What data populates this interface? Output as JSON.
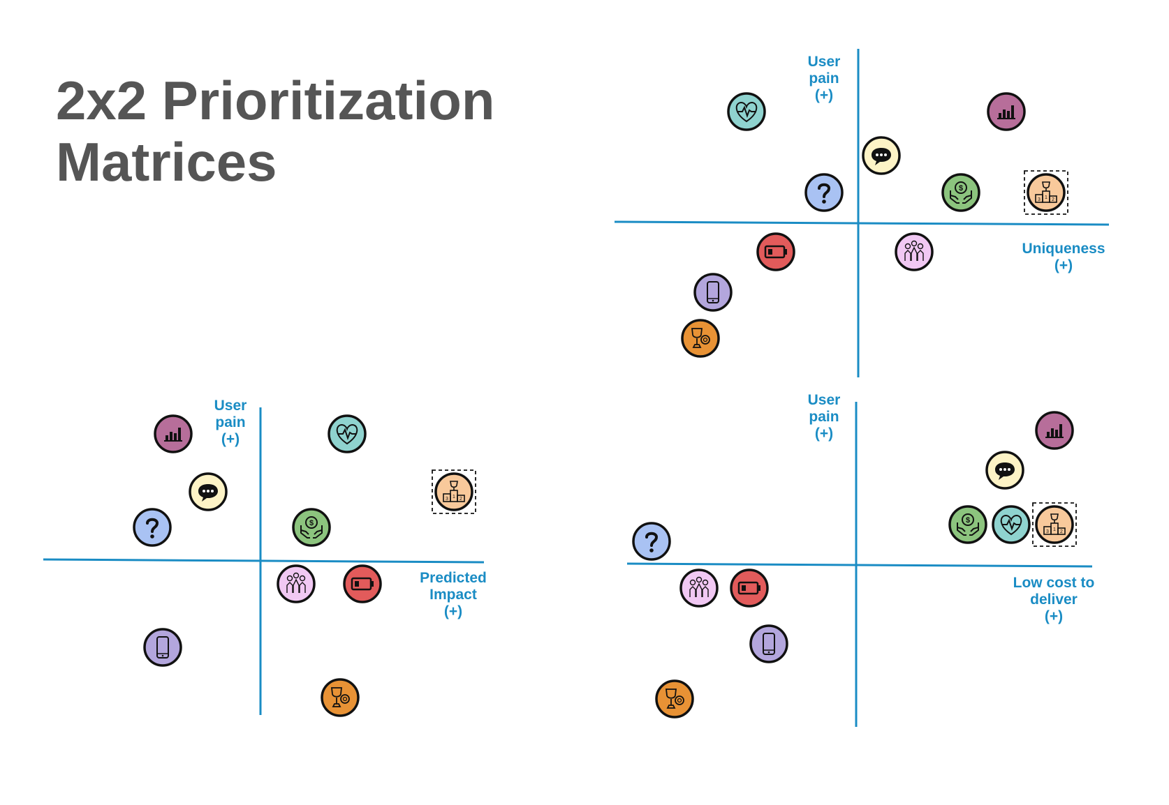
{
  "title": {
    "line1": "2x2 Prioritization",
    "line2": "Matrices"
  },
  "colors": {
    "axis": "#1a8cc4",
    "label": "#1a8cc4",
    "title": "#555555",
    "outline": "#111111"
  },
  "icon_types": {
    "heart": {
      "icon": "heart-pulse-icon",
      "fill": "#8fd3cf"
    },
    "bar": {
      "icon": "bar-chart-icon",
      "fill": "#b76e9a"
    },
    "chat": {
      "icon": "speech-bubble-icon",
      "fill": "#fdf3c6"
    },
    "question": {
      "icon": "question-mark-icon",
      "fill": "#a9c2f3"
    },
    "money": {
      "icon": "money-in-hands-icon",
      "fill": "#8cc47e"
    },
    "podium": {
      "icon": "trophy-podium-icon",
      "fill": "#f8c99b"
    },
    "battery": {
      "icon": "low-battery-icon",
      "fill": "#e25b5b"
    },
    "vote": {
      "icon": "voting-hands-icon",
      "fill": "#f1c8f3"
    },
    "phone": {
      "icon": "smartphone-icon",
      "fill": "#b3a6dd"
    },
    "trophy": {
      "icon": "trophy-coin-icon",
      "fill": "#e89235"
    }
  },
  "matrices": [
    {
      "name": "matrix-uniqueness",
      "y_label": [
        "User",
        "pain",
        "(+)"
      ],
      "x_label": [
        "Uniqueness",
        "(+)"
      ],
      "items": [
        {
          "type": "heart"
        },
        {
          "type": "bar"
        },
        {
          "type": "chat"
        },
        {
          "type": "question"
        },
        {
          "type": "money"
        },
        {
          "type": "podium",
          "highlight": true
        },
        {
          "type": "battery"
        },
        {
          "type": "vote"
        },
        {
          "type": "phone"
        },
        {
          "type": "trophy"
        }
      ]
    },
    {
      "name": "matrix-predicted-impact",
      "y_label": [
        "User",
        "pain",
        "(+)"
      ],
      "x_label": [
        "Predicted",
        "Impact",
        "(+)"
      ],
      "items": [
        {
          "type": "bar"
        },
        {
          "type": "heart"
        },
        {
          "type": "chat"
        },
        {
          "type": "podium",
          "highlight": true
        },
        {
          "type": "question"
        },
        {
          "type": "money"
        },
        {
          "type": "vote"
        },
        {
          "type": "battery"
        },
        {
          "type": "phone"
        },
        {
          "type": "trophy"
        }
      ]
    },
    {
      "name": "matrix-low-cost",
      "y_label": [
        "User",
        "pain",
        "(+)"
      ],
      "x_label": [
        "Low cost to",
        "deliver",
        "(+)"
      ],
      "items": [
        {
          "type": "bar"
        },
        {
          "type": "chat"
        },
        {
          "type": "money"
        },
        {
          "type": "heart"
        },
        {
          "type": "podium",
          "highlight": true
        },
        {
          "type": "question"
        },
        {
          "type": "vote"
        },
        {
          "type": "battery"
        },
        {
          "type": "phone"
        },
        {
          "type": "trophy"
        }
      ]
    }
  ]
}
